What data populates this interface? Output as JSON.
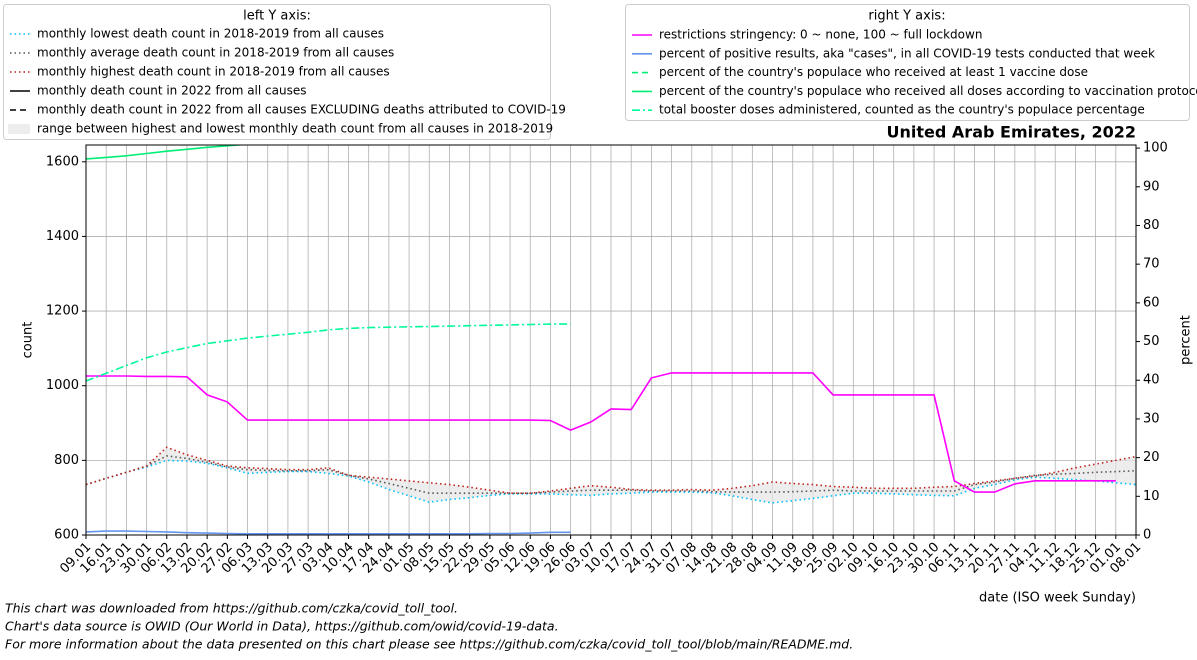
{
  "chart_data": {
    "type": "line",
    "title": "United Arab Emirates, 2022",
    "y_label": "count",
    "y2_label": "percent",
    "x_label": "date (ISO week Sunday)",
    "legend_left_title": "left Y axis:",
    "legend_right_title": "right Y axis:",
    "notes": [
      "This chart was downloaded from https://github.com/czka/covid_toll_tool.",
      "Chart's data source is OWID (Our World in Data), https://github.com/owid/covid-19-data.",
      "For more information about the data presented on this chart please see https://github.com/czka/covid_toll_tool/blob/main/README.md."
    ],
    "grid": true,
    "ylim": [
      600,
      1645
    ],
    "yticks": [
      600,
      800,
      1000,
      1200,
      1400,
      1600
    ],
    "y2lim": [
      0,
      100.8
    ],
    "y2ticks": [
      0,
      10,
      20,
      30,
      40,
      50,
      60,
      70,
      80,
      90,
      100
    ],
    "categories": [
      "09.01",
      "16.01",
      "23.01",
      "30.01",
      "06.02",
      "13.02",
      "20.02",
      "27.02",
      "06.03",
      "13.03",
      "20.03",
      "27.03",
      "03.04",
      "10.04",
      "17.04",
      "24.04",
      "01.05",
      "08.05",
      "15.05",
      "22.05",
      "29.05",
      "05.06",
      "12.06",
      "19.06",
      "26.06",
      "03.07",
      "10.07",
      "17.07",
      "24.07",
      "31.07",
      "07.08",
      "14.08",
      "21.08",
      "28.08",
      "04.09",
      "11.09",
      "18.09",
      "25.09",
      "02.10",
      "09.10",
      "16.10",
      "23.10",
      "30.10",
      "06.11",
      "13.11",
      "20.11",
      "27.11",
      "04.12",
      "11.12",
      "18.12",
      "25.12",
      "01.01",
      "08.01"
    ],
    "range": {
      "name": "range between highest and lowest monthly death count from all causes in 2018-2019",
      "color": "#e6e6e6",
      "between": [
        2,
        0
      ]
    },
    "series": [
      {
        "name": "monthly lowest death count in 2018-2019 from all causes",
        "color": "#00bfff",
        "style": "dotted",
        "axis": "y",
        "values": [
          735,
          752,
          768,
          782,
          800,
          798,
          792,
          780,
          765,
          768,
          770,
          770,
          765,
          758,
          742,
          722,
          705,
          688,
          695,
          700,
          706,
          710,
          710,
          710,
          708,
          706,
          710,
          712,
          715,
          715,
          715,
          713,
          705,
          695,
          686,
          692,
          698,
          705,
          712,
          712,
          710,
          708,
          706,
          705,
          725,
          735,
          748,
          755,
          752,
          748,
          745,
          740,
          735
        ]
      },
      {
        "name": "monthly average death count in 2018-2019 from all causes",
        "color": "#555555",
        "style": "dotted",
        "axis": "y",
        "values": [
          735,
          752,
          768,
          785,
          812,
          805,
          795,
          782,
          775,
          773,
          772,
          772,
          775,
          760,
          750,
          738,
          725,
          712,
          712,
          712,
          712,
          712,
          712,
          715,
          718,
          720,
          720,
          720,
          718,
          718,
          718,
          716,
          715,
          715,
          715,
          716,
          718,
          720,
          718,
          718,
          718,
          718,
          718,
          718,
          735,
          742,
          752,
          760,
          763,
          765,
          768,
          770,
          772
        ]
      },
      {
        "name": "monthly highest death count in 2018-2019 from all causes",
        "color": "#c0201a",
        "style": "dotted",
        "axis": "y",
        "values": [
          735,
          752,
          768,
          785,
          835,
          815,
          800,
          785,
          780,
          778,
          775,
          775,
          780,
          760,
          755,
          750,
          745,
          740,
          735,
          728,
          720,
          712,
          712,
          718,
          725,
          732,
          728,
          722,
          720,
          720,
          722,
          720,
          725,
          732,
          742,
          738,
          735,
          730,
          728,
          725,
          725,
          725,
          728,
          730,
          738,
          745,
          752,
          758,
          768,
          780,
          790,
          800,
          810
        ]
      },
      {
        "name": "monthly death count in 2022 from all causes",
        "color": "#000000",
        "style": "solid",
        "axis": "y",
        "values": [
          null,
          null,
          null,
          null,
          null,
          null,
          null,
          null,
          null,
          null,
          null,
          null,
          null,
          null,
          null,
          null,
          null,
          null,
          null,
          null,
          null,
          null,
          null,
          null,
          null,
          null,
          null,
          null,
          null,
          null,
          null,
          null,
          null,
          null,
          null,
          null,
          null,
          null,
          null,
          null,
          null,
          null,
          null,
          null,
          null,
          null,
          null,
          null,
          null,
          null,
          null,
          null,
          null
        ]
      },
      {
        "name": "monthly death count in 2022 from all causes EXCLUDING deaths attributed to COVID-19",
        "color": "#000000",
        "style": "dashed",
        "axis": "y",
        "values": [
          null,
          null,
          null,
          null,
          null,
          null,
          null,
          null,
          null,
          null,
          null,
          null,
          null,
          null,
          null,
          null,
          null,
          null,
          null,
          null,
          null,
          null,
          null,
          null,
          null,
          null,
          null,
          null,
          null,
          null,
          null,
          null,
          null,
          null,
          null,
          null,
          null,
          null,
          null,
          null,
          null,
          null,
          null,
          null,
          null,
          null,
          null,
          null,
          null,
          null,
          null,
          null,
          null
        ]
      },
      {
        "name": "restrictions stringency: 0 ~ none, 100 ~ full lockdown",
        "color": "#ff00ff",
        "style": "solid",
        "axis": "y2",
        "values": [
          41.1,
          41.1,
          41.1,
          41.0,
          41.0,
          40.9,
          36.2,
          34.4,
          29.7,
          29.7,
          29.7,
          29.7,
          29.7,
          29.7,
          29.7,
          29.7,
          29.7,
          29.7,
          29.7,
          29.7,
          29.7,
          29.7,
          29.7,
          29.6,
          27.1,
          29.2,
          32.6,
          32.4,
          40.6,
          41.9,
          41.9,
          41.9,
          41.9,
          41.9,
          41.9,
          41.9,
          41.9,
          36.2,
          36.2,
          36.2,
          36.2,
          36.2,
          36.2,
          14.0,
          11.1,
          11.1,
          13.2,
          14.0,
          14.0,
          14.0,
          14.0,
          14.0,
          null
        ]
      },
      {
        "name": "percent of positive results, aka \"cases\", in all COVID-19 tests conducted that week",
        "color": "#6495ed",
        "style": "solid",
        "axis": "y2",
        "values": [
          0.8,
          1.0,
          1.0,
          0.9,
          0.8,
          0.6,
          0.5,
          0.4,
          0.3,
          0.3,
          0.3,
          0.3,
          0.3,
          0.3,
          0.3,
          0.3,
          0.3,
          0.3,
          0.3,
          0.3,
          0.4,
          0.4,
          0.5,
          0.7,
          0.7,
          null,
          null,
          null,
          null,
          null,
          null,
          null,
          null,
          null,
          null,
          null,
          null,
          null,
          null,
          null,
          null,
          null,
          null,
          null,
          null,
          null,
          null,
          null,
          null,
          null,
          null,
          null,
          null
        ]
      },
      {
        "name": "percent of the country's populace who received at least 1 vaccine dose",
        "color": "#00ee76",
        "style": "dashed",
        "axis": "y2",
        "values": [
          null,
          null,
          null,
          null,
          null,
          null,
          null,
          null,
          null,
          null,
          null,
          null,
          null,
          null,
          null,
          null,
          null,
          null,
          null,
          null,
          null,
          null,
          null,
          null,
          null,
          null,
          null,
          null,
          null,
          null,
          null,
          null,
          null,
          null,
          null,
          null,
          null,
          null,
          null,
          null,
          null,
          null,
          null,
          null,
          null,
          null,
          null,
          null,
          null,
          null,
          null,
          null,
          null
        ]
      },
      {
        "name": "percent of the country's populace who received all doses according to vaccination protocol",
        "color": "#00ee76",
        "style": "solid",
        "axis": "y2",
        "values": [
          97.2,
          97.6,
          98.0,
          98.6,
          99.2,
          99.7,
          100.2,
          100.6,
          101.0,
          null,
          null,
          null,
          null,
          null,
          null,
          null,
          null,
          null,
          null,
          null,
          null,
          null,
          null,
          null,
          null,
          null,
          null,
          null,
          null,
          null,
          null,
          null,
          null,
          null,
          null,
          null,
          null,
          null,
          null,
          null,
          null,
          null,
          null,
          null,
          null,
          null,
          null,
          null,
          null,
          null,
          null,
          null,
          null
        ]
      },
      {
        "name": "total booster doses administered, counted as the country's populace percentage",
        "color": "#00fa9a",
        "style": "dashdot",
        "axis": "y2",
        "values": [
          39.8,
          41.8,
          43.8,
          45.8,
          47.3,
          48.4,
          49.5,
          50.2,
          50.9,
          51.4,
          51.9,
          52.4,
          53.0,
          53.4,
          53.6,
          53.7,
          53.8,
          53.9,
          54.0,
          54.1,
          54.2,
          54.3,
          54.4,
          54.5,
          54.5,
          null,
          null,
          null,
          null,
          null,
          null,
          null,
          null,
          null,
          null,
          null,
          null,
          null,
          null,
          null,
          null,
          null,
          null,
          null,
          null,
          null,
          null,
          null,
          null,
          null,
          null,
          null,
          null
        ]
      }
    ]
  }
}
